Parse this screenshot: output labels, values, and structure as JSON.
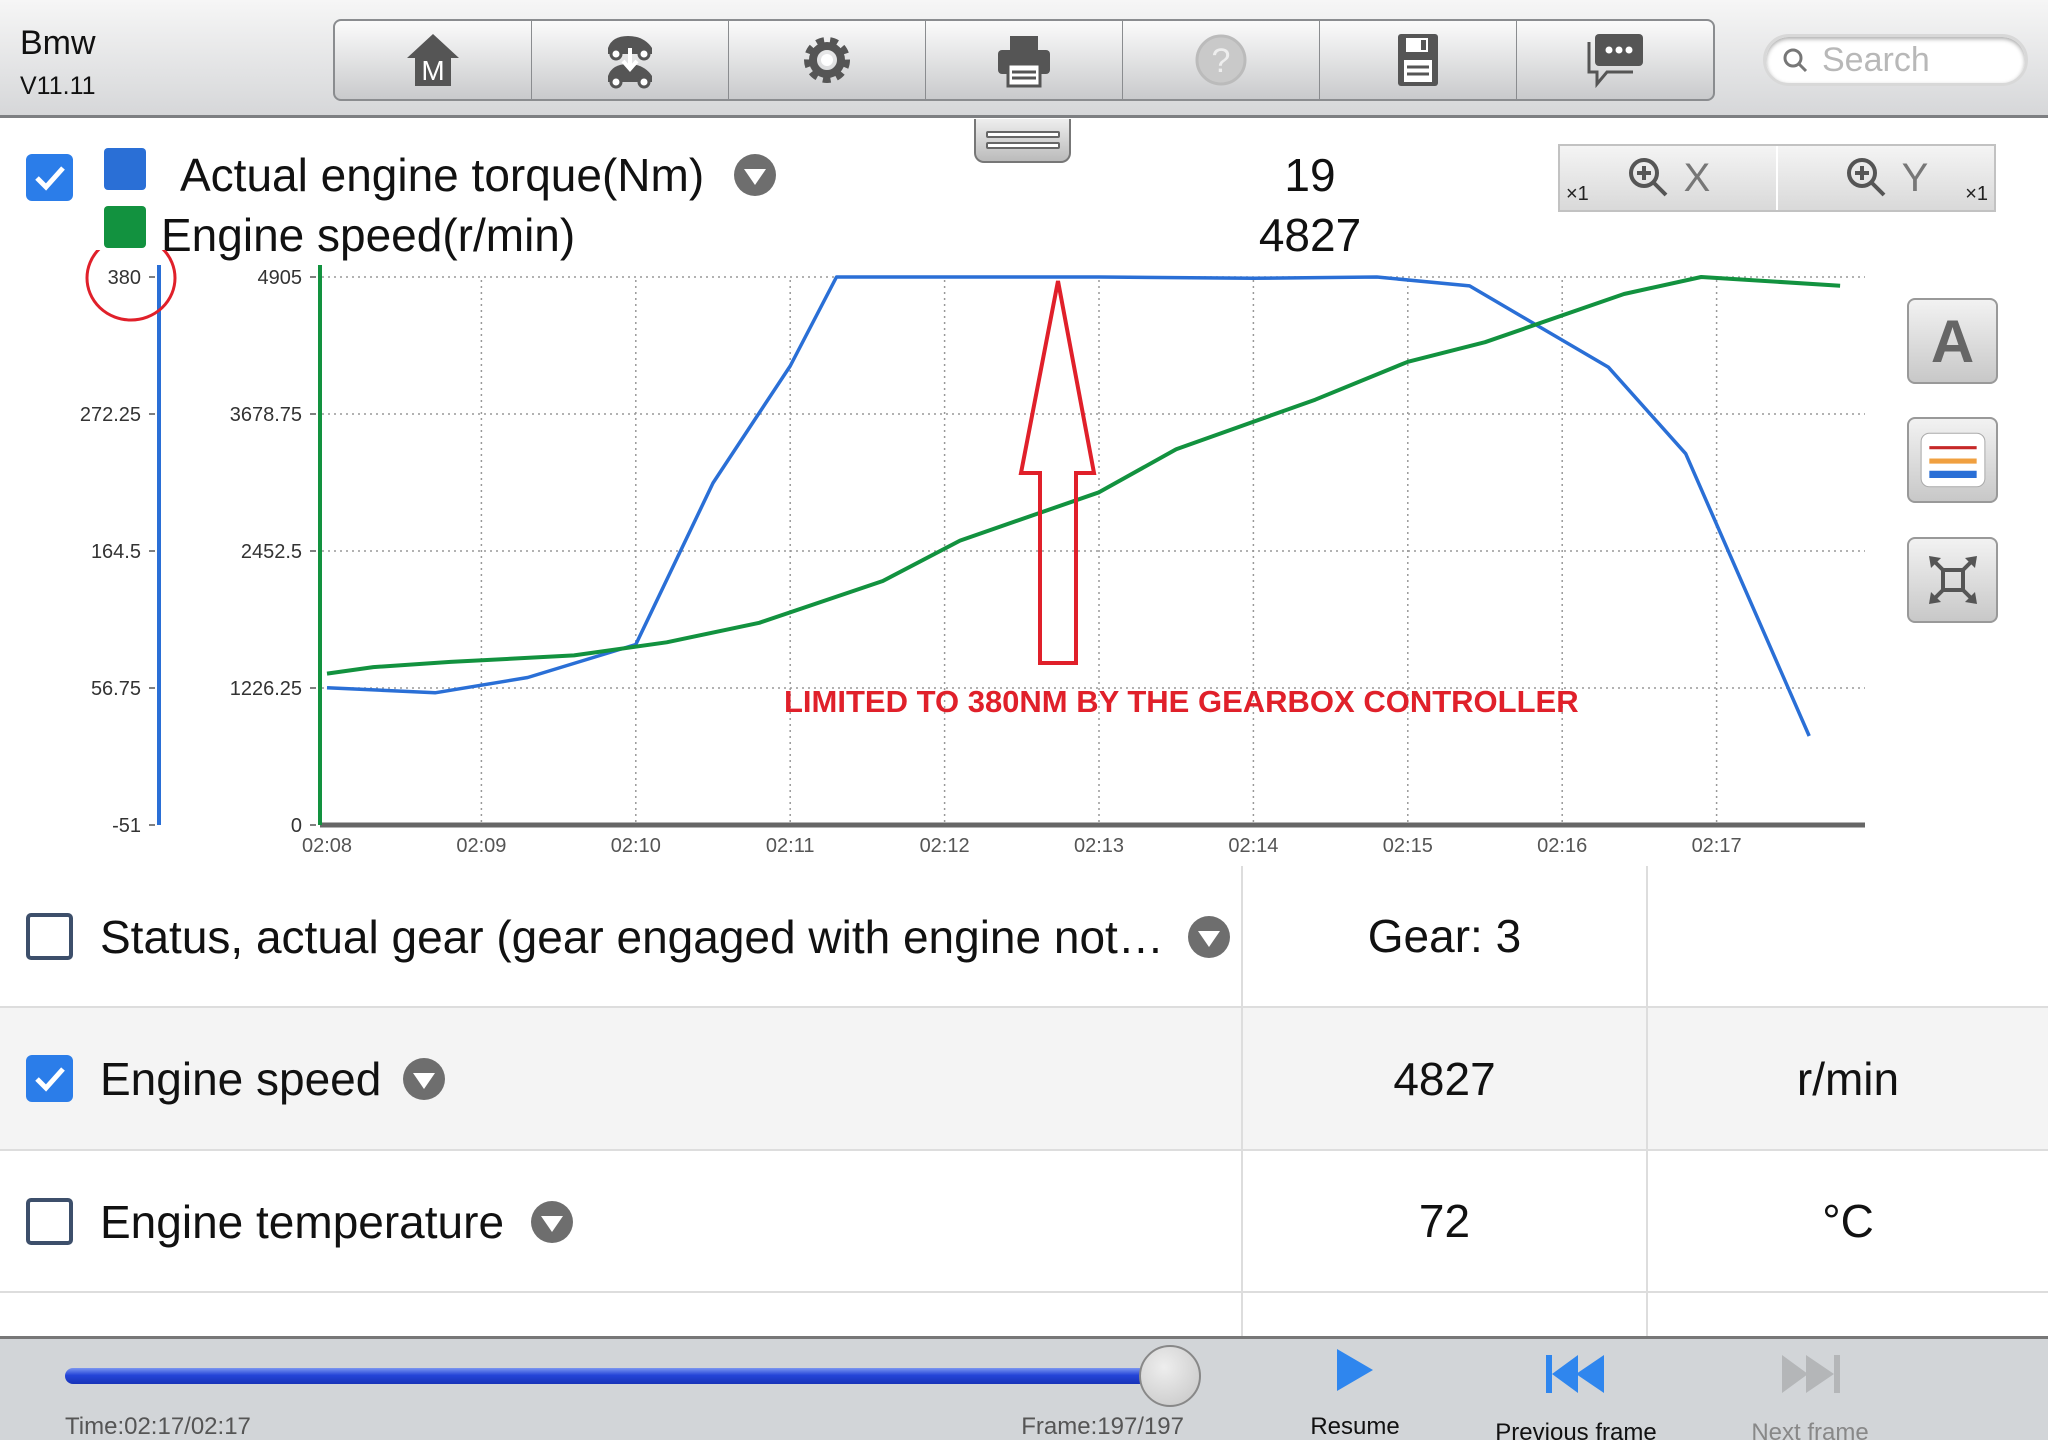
{
  "header": {
    "app_name": "Bmw",
    "version": "V11.11",
    "search_placeholder": "Search"
  },
  "toolbar": [
    {
      "name": "home",
      "icon": "home-icon"
    },
    {
      "name": "vehicle-swap",
      "icon": "vehicle-swap-icon"
    },
    {
      "name": "settings",
      "icon": "gear-icon"
    },
    {
      "name": "print",
      "icon": "printer-icon"
    },
    {
      "name": "help",
      "icon": "help-icon",
      "disabled": true
    },
    {
      "name": "save",
      "icon": "floppy-disk-icon"
    },
    {
      "name": "feedback",
      "icon": "chat-icon"
    }
  ],
  "legend": [
    {
      "label": "Actual engine torque(Nm)",
      "value": "19",
      "color": "#2a6fd6",
      "checked": true
    },
    {
      "label": "Engine speed(r/min)",
      "value": "4827",
      "color": "#12923f"
    }
  ],
  "zoom": {
    "x_label": "X",
    "y_label": "Y",
    "x_factor": "×1",
    "y_factor": "×1"
  },
  "side_buttons": {
    "font_label": "A"
  },
  "chart_data": {
    "type": "line",
    "x_ticks": [
      "02:08",
      "02:09",
      "02:10",
      "02:11",
      "02:12",
      "02:13",
      "02:14",
      "02:15",
      "02:16",
      "02:17"
    ],
    "xlim": [
      "02:08",
      "02:17.7"
    ],
    "grid": true,
    "axes": [
      {
        "series": "Actual engine torque(Nm)",
        "ylim": [
          -51,
          380
        ],
        "ticks": [
          "380",
          "272.25",
          "164.5",
          "56.75",
          "-51"
        ],
        "color": "#2a6fd6"
      },
      {
        "series": "Engine speed(r/min)",
        "ylim": [
          0,
          4905
        ],
        "ticks": [
          "4905",
          "3678.75",
          "2452.5",
          "1226.25",
          "0"
        ],
        "color": "#12923f"
      }
    ],
    "series": [
      {
        "name": "Actual engine torque(Nm)",
        "axis": 0,
        "color": "#2a6fd6",
        "x": [
          "02:08.0",
          "02:08.7",
          "02:09.3",
          "02:10.0",
          "02:10.5",
          "02:11.0",
          "02:11.3",
          "02:12.0",
          "02:13.0",
          "02:14.0",
          "02:14.8",
          "02:15.4",
          "02:16.3",
          "02:16.8",
          "02:17.6"
        ],
        "y": [
          57,
          53,
          65,
          91,
          218,
          310,
          380,
          380,
          380,
          379,
          380,
          373,
          309,
          241,
          19
        ]
      },
      {
        "name": "Engine speed(r/min)",
        "axis": 1,
        "color": "#12923f",
        "x": [
          "02:08.0",
          "02:08.3",
          "02:08.8",
          "02:09.6",
          "02:10.2",
          "02:10.8",
          "02:11.6",
          "02:12.1",
          "02:13.0",
          "02:13.5",
          "02:14.4",
          "02:15.0",
          "02:15.5",
          "02:16.4",
          "02:16.9",
          "02:17.8"
        ],
        "y": [
          1355,
          1413,
          1460,
          1518,
          1635,
          1810,
          2184,
          2546,
          2978,
          3364,
          3807,
          4146,
          4321,
          4753,
          4905,
          4827
        ]
      }
    ],
    "annotation": {
      "text": "LIMITED TO 380NM BY THE GEARBOX CONTROLLER",
      "color": "#e0202a",
      "highlighted_tick": "380"
    }
  },
  "table": [
    {
      "label": "Status, actual gear (gear engaged with engine not…",
      "value": "Gear: 3",
      "unit": "",
      "checked": false
    },
    {
      "label": "Engine speed",
      "value": "4827",
      "unit": "r/min",
      "checked": true
    },
    {
      "label": "Engine temperature",
      "value": "72",
      "unit": "°C",
      "checked": false
    }
  ],
  "playback": {
    "time": "Time:02:17/02:17",
    "frame": "Frame:197/197",
    "progress": 1.0,
    "resume": "Resume",
    "previous": "Previous frame",
    "next": "Next frame"
  }
}
